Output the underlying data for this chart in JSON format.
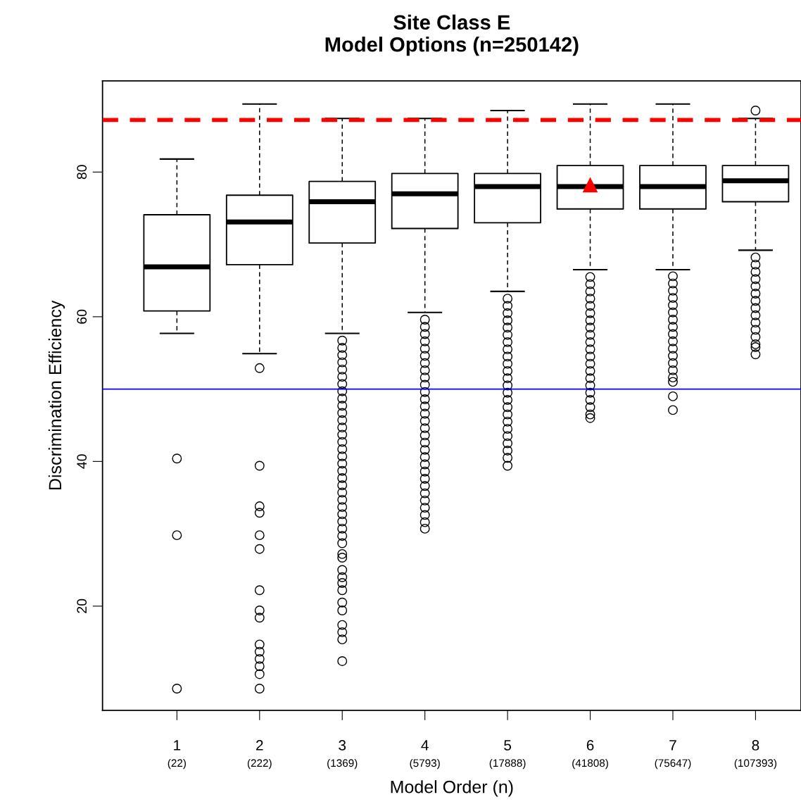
{
  "chart_data": {
    "type": "box",
    "title": "Site Class E\nModel Options (n=250142)",
    "xlabel": "Model Order (n)",
    "ylabel": "Discrimination Efficiency",
    "categories": [
      "1\n(22)",
      "2\n(222)",
      "3\n(1369)",
      "4\n(5793)",
      "5\n(17888)",
      "6\n(41808)",
      "7\n(75647)",
      "8\n(107393)"
    ],
    "ylim": [
      5.6,
      92.6
    ],
    "yticks": [
      20,
      40,
      60,
      80
    ],
    "grid": false,
    "legend": false,
    "boxes": [
      {
        "low": 57.7,
        "q1": 60.8,
        "median": 66.9,
        "q3": 74.1,
        "high": 81.8,
        "outliers": [
          40.4,
          29.8,
          8.6
        ]
      },
      {
        "low": 54.9,
        "q1": 67.2,
        "median": 73.1,
        "q3": 76.8,
        "high": 89.4,
        "outliers": [
          52.9,
          39.4,
          33.8,
          32.9,
          29.8,
          27.9,
          22.2,
          19.4,
          18.4,
          14.7,
          13.7,
          12.7,
          11.7,
          10.6,
          8.6
        ]
      },
      {
        "low": 57.7,
        "q1": 70.2,
        "median": 75.9,
        "q3": 78.7,
        "high": 87.4,
        "outliers": [
          56.7,
          55.7,
          54.7,
          53.7,
          52.7,
          51.7,
          50.7,
          49.7,
          48.7,
          47.7,
          46.7,
          45.7,
          44.7,
          43.7,
          42.7,
          41.7,
          40.7,
          39.7,
          38.7,
          37.7,
          36.7,
          35.7,
          34.7,
          33.7,
          32.7,
          31.7,
          30.7,
          29.7,
          28.7,
          27.2,
          26.7,
          25.0,
          24.0,
          23.2,
          22.2,
          20.5,
          19.4,
          17.4,
          16.4,
          15.4,
          12.4
        ]
      },
      {
        "low": 60.6,
        "q1": 72.2,
        "median": 77.0,
        "q3": 79.8,
        "high": 87.4,
        "outliers": [
          59.6,
          58.6,
          57.6,
          56.6,
          55.6,
          54.6,
          53.6,
          52.6,
          51.6,
          50.6,
          49.6,
          48.6,
          47.6,
          46.6,
          45.6,
          44.6,
          43.6,
          42.6,
          41.6,
          40.6,
          39.6,
          38.6,
          37.6,
          36.6,
          35.6,
          34.6,
          33.6,
          32.6,
          31.6,
          30.7
        ]
      },
      {
        "low": 63.5,
        "q1": 73.0,
        "median": 78.0,
        "q3": 79.8,
        "high": 88.5,
        "outliers": [
          62.5,
          61.5,
          60.5,
          59.5,
          58.5,
          57.5,
          56.5,
          55.5,
          54.5,
          53.5,
          52.5,
          51.5,
          50.5,
          49.5,
          48.5,
          47.5,
          46.5,
          45.5,
          44.5,
          43.5,
          42.5,
          41.5,
          40.5,
          39.4
        ]
      },
      {
        "low": 66.5,
        "q1": 74.9,
        "median": 78.0,
        "q3": 80.9,
        "high": 89.4,
        "mean": 78.2,
        "outliers": [
          65.5,
          64.5,
          63.5,
          62.5,
          61.5,
          60.5,
          59.5,
          58.5,
          57.5,
          56.5,
          55.5,
          54.5,
          53.5,
          52.5,
          51.5,
          50.5,
          49.5,
          48.5,
          47.5,
          46.5,
          46.0
        ]
      },
      {
        "low": 66.5,
        "q1": 74.9,
        "median": 78.0,
        "q3": 80.9,
        "high": 89.4,
        "outliers": [
          65.6,
          64.6,
          63.6,
          62.6,
          61.6,
          60.6,
          59.6,
          58.6,
          57.6,
          56.6,
          55.6,
          54.6,
          53.6,
          52.6,
          51.6,
          51.0,
          49.0,
          47.1
        ]
      },
      {
        "low": 69.2,
        "q1": 75.9,
        "median": 78.8,
        "q3": 80.9,
        "high": 87.4,
        "outliers": [
          88.5,
          68.2,
          67.2,
          66.2,
          65.2,
          64.2,
          63.2,
          62.2,
          61.2,
          60.2,
          59.2,
          58.2,
          57.2,
          56.2,
          55.8,
          54.8
        ]
      }
    ],
    "ref_lines": [
      {
        "axis": "y",
        "value": 87.2,
        "color": "#ff0000",
        "line_style": "dashed"
      },
      {
        "axis": "y",
        "value": 50,
        "color": "#0000ff",
        "line_style": "solid"
      }
    ]
  }
}
